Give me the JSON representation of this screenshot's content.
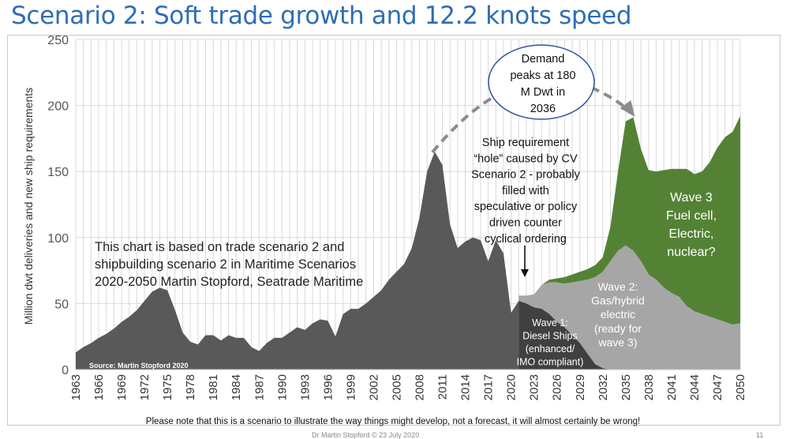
{
  "title": "Scenario  2: Soft trade growth and 12.2 knots speed",
  "footnote": "Please note that this is a scenario to illustrate the way things might develop, not a forecast, it will almost certainly be wrong!",
  "credit_fragment": "Dr Martin Stopford © 23 July 2020",
  "page_number": "11",
  "colors": {
    "title": "#2e6db5",
    "historical": "#595959",
    "wave1": "#404040",
    "wave2": "#a6a6a6",
    "wave3": "#548235",
    "arrow": "#8c8c8c",
    "ellipse_border": "#2e5597"
  },
  "annotations": {
    "trade_note": [
      "This chart is based on trade scenario 2 and",
      "shipbuilding scenario 2 in Maritime Scenarios",
      "2020-2050 Martin Stopford, Seatrade Maritime"
    ],
    "hole_note": [
      "Ship requirement",
      "“hole” caused by CV",
      "Scenario 2 - probably",
      "filled with",
      "speculative or policy",
      "driven counter",
      "cyclical ordering"
    ],
    "demand_peak": [
      "Demand",
      "peaks at 180",
      "M Dwt in",
      "2036"
    ],
    "wave1": [
      "Wave 1:",
      "Diesel Ships",
      "(enhanced/",
      "IMO compliant)"
    ],
    "wave2": [
      "Wave 2:",
      "Gas/hybrid",
      "electric",
      "(ready for",
      "wave 3)"
    ],
    "wave3": [
      "Wave 3",
      "Fuel cell,",
      "Electric,",
      "nuclear?"
    ],
    "source": "Source: Martin Stopford 2020"
  },
  "chart_data": {
    "type": "area",
    "ylabel": "Million dwt deliveries and new ship requirements",
    "ylim": [
      0,
      250
    ],
    "yticks": [
      0,
      50,
      100,
      150,
      200,
      250
    ],
    "xlim": [
      1963,
      2050
    ],
    "xticks": [
      "1963",
      "1966",
      "1969",
      "1972",
      "1975",
      "1978",
      "1981",
      "1984",
      "1987",
      "1990",
      "1993",
      "1996",
      "1999",
      "2002",
      "2005",
      "2008",
      "2011",
      "2014",
      "2017",
      "2020",
      "2023",
      "2026",
      "2029",
      "2032",
      "2035",
      "2038",
      "2041",
      "2044",
      "2047",
      "2050"
    ],
    "grid": true,
    "series": [
      {
        "name": "",
        "x": [
          1963,
          1964,
          1965,
          1966,
          1967,
          1968,
          1969,
          1970,
          1971,
          1972,
          1973,
          1974,
          1975,
          1976,
          1977,
          1978,
          1979,
          1980,
          1981,
          1982,
          1983,
          1984,
          1985,
          1986,
          1987,
          1988,
          1989,
          1990,
          1991,
          1992,
          1993,
          1994,
          1995,
          1996,
          1997,
          1998,
          1999,
          2000,
          2001,
          2002,
          2003,
          2004,
          2005,
          2006,
          2007,
          2008,
          2009,
          2010,
          2011,
          2012,
          2013,
          2014,
          2015,
          2016,
          2017,
          2018,
          2019,
          2020,
          2021
        ],
        "values": [
          13,
          17,
          20,
          24,
          27,
          31,
          36,
          40,
          45,
          52,
          59,
          62,
          60,
          45,
          28,
          21,
          19,
          26,
          26,
          22,
          26,
          24,
          24,
          17,
          14,
          20,
          24,
          24,
          28,
          32,
          30,
          35,
          38,
          37,
          25,
          42,
          46,
          46,
          50,
          55,
          60,
          68,
          74,
          80,
          92,
          115,
          150,
          165,
          155,
          110,
          92,
          97,
          100,
          98,
          82,
          98,
          88,
          43,
          52
        ]
      },
      {
        "name": "Wave 1",
        "x": [
          2021,
          2022,
          2023,
          2024,
          2025,
          2026,
          2027,
          2028,
          2029,
          2030,
          2031,
          2032,
          2033
        ],
        "values": [
          52,
          50,
          47,
          46,
          42,
          36,
          32,
          26,
          20,
          12,
          4,
          1,
          0
        ]
      },
      {
        "name": "Wave 2",
        "x": [
          2021,
          2022,
          2023,
          2024,
          2025,
          2026,
          2027,
          2028,
          2029,
          2030,
          2031,
          2032,
          2033,
          2034,
          2035,
          2036,
          2037,
          2038,
          2039,
          2040,
          2041,
          2042,
          2043,
          2044,
          2045,
          2046,
          2047,
          2048,
          2049,
          2050
        ],
        "values": [
          4,
          6,
          10,
          18,
          24,
          30,
          33,
          40,
          47,
          56,
          66,
          73,
          82,
          90,
          94,
          90,
          82,
          72,
          68,
          62,
          58,
          55,
          48,
          44,
          42,
          40,
          38,
          36,
          34,
          35
        ]
      },
      {
        "name": "Wave 3",
        "x": [
          2021,
          2022,
          2023,
          2024,
          2025,
          2026,
          2027,
          2028,
          2029,
          2030,
          2031,
          2032,
          2033,
          2034,
          2035,
          2036,
          2037,
          2038,
          2039,
          2040,
          2041,
          2042,
          2043,
          2044,
          2045,
          2046,
          2047,
          2048,
          2049,
          2050
        ],
        "values": [
          0,
          0,
          0,
          0,
          2,
          3,
          5,
          6,
          7,
          8,
          9,
          11,
          26,
          60,
          94,
          101,
          85,
          79,
          82,
          89,
          94,
          97,
          104,
          104,
          108,
          117,
          130,
          140,
          146,
          157
        ]
      }
    ],
    "demand_arrow_from_year": 2010,
    "demand_arrow_to_year": 2036
  }
}
